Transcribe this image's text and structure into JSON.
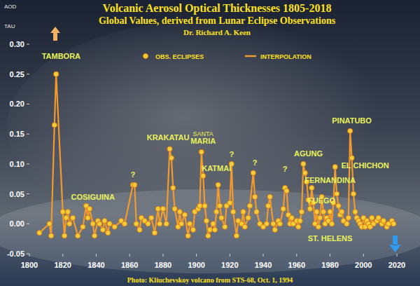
{
  "chart_data": {
    "type": "line",
    "title": "Volcanic Aerosol Optical Thicknesses 1805-2018",
    "subtitle": "Global Values, derived from Lunar Eclipse Observations",
    "author": "Dr. Richard A. Keen",
    "caption": "Photo: Kliuchevskoy volcano from STS-68, Oct. 1, 1994",
    "ylabel": [
      "AOD",
      "TAU"
    ],
    "x": [
      1806,
      1812,
      1813,
      1815,
      1816,
      1820,
      1821,
      1822,
      1823,
      1824,
      1826,
      1829,
      1832,
      1834,
      1835,
      1836,
      1838,
      1839,
      1841,
      1842,
      1844,
      1845,
      1847,
      1848,
      1851,
      1855,
      1857,
      1862,
      1863,
      1864,
      1866,
      1867,
      1869,
      1871,
      1873,
      1875,
      1877,
      1878,
      1880,
      1882,
      1884,
      1885,
      1886,
      1887,
      1889,
      1890,
      1891,
      1893,
      1895,
      1896,
      1898,
      1899,
      1901,
      1902,
      1903,
      1904,
      1905,
      1906,
      1907,
      1908,
      1910,
      1911,
      1912,
      1913,
      1914,
      1915,
      1917,
      1918,
      1920,
      1921,
      1922,
      1924,
      1925,
      1927,
      1928,
      1929,
      1931,
      1932,
      1934,
      1935,
      1936,
      1938,
      1940,
      1942,
      1943,
      1944,
      1946,
      1947,
      1949,
      1950,
      1952,
      1953,
      1954,
      1955,
      1956,
      1957,
      1958,
      1960,
      1961,
      1962,
      1963,
      1964,
      1965,
      1966,
      1967,
      1968,
      1969,
      1970,
      1971,
      1972,
      1973,
      1974,
      1975,
      1976,
      1977,
      1978,
      1979,
      1980,
      1981,
      1982,
      1983,
      1984,
      1985,
      1986,
      1987,
      1988,
      1990,
      1991,
      1992,
      1993,
      1994,
      1995,
      1996,
      1997,
      1998,
      1999,
      2000,
      2001,
      2002,
      2003,
      2004,
      2005,
      2006,
      2008,
      2009,
      2011,
      2012,
      2014,
      2015,
      2017,
      2018
    ],
    "series": [
      {
        "name": "INTERPOLATION",
        "type": "line",
        "color": "#f39a2e",
        "line_style": "solid",
        "values": [
          -0.015,
          0,
          -0.02,
          0.165,
          0.25,
          0.02,
          -0.02,
          0.01,
          0.02,
          0,
          0.01,
          -0.02,
          -0.005,
          0.03,
          0.01,
          0.025,
          0,
          -0.02,
          0.005,
          0,
          -0.01,
          0.005,
          -0.015,
          0,
          -0.005,
          0.005,
          0,
          0.065,
          0.065,
          0,
          -0.01,
          0.01,
          0.005,
          0,
          0.01,
          -0.015,
          0.025,
          0,
          0.025,
          0,
          0.125,
          0.11,
          0.06,
          0.025,
          -0.005,
          0.02,
          0,
          0.015,
          -0.02,
          0,
          -0.01,
          0.02,
          0.025,
          0.03,
          0.12,
          0.08,
          0.03,
          0.005,
          -0.02,
          -0.01,
          0,
          -0.01,
          0.02,
          0.065,
          0.03,
          0.01,
          -0.005,
          0.03,
          0.035,
          0.1,
          0.02,
          -0.02,
          0.005,
          0,
          0.02,
          -0.005,
          0.01,
          0.03,
          0.085,
          0.045,
          0.02,
          0,
          -0.005,
          0,
          0.03,
          0.045,
          0,
          -0.01,
          0.005,
          0,
          0.025,
          0.06,
          0.055,
          0.015,
          0,
          0.01,
          0,
          0.005,
          -0.005,
          0.005,
          0.02,
          0.1,
          0.085,
          0.07,
          0.04,
          0.025,
          0.06,
          0.035,
          0,
          0.02,
          -0.005,
          0.01,
          0.045,
          0.02,
          0,
          0.01,
          0.005,
          0.02,
          0,
          0.035,
          0.095,
          0.05,
          0.03,
          0.015,
          0.02,
          0.005,
          0,
          0.01,
          0.155,
          0.11,
          0.05,
          0.02,
          0.01,
          0.005,
          0,
          -0.005,
          0.01,
          -0.005,
          0.005,
          0,
          -0.005,
          0.01,
          0,
          0.005,
          0.01,
          0,
          0.005,
          -0.005,
          0,
          0.005,
          0
        ]
      },
      {
        "name": "OBS. ECLIPSES",
        "type": "scatter",
        "color": "#f2cf3a",
        "marker": "circle",
        "values": [
          -0.015,
          0,
          -0.02,
          0.165,
          0.25,
          0.02,
          -0.02,
          0.01,
          0.02,
          0,
          0.01,
          -0.02,
          -0.005,
          0.03,
          0.01,
          0.025,
          0,
          -0.02,
          0.005,
          0,
          -0.01,
          0.005,
          -0.015,
          0,
          -0.005,
          0.005,
          0,
          0.065,
          0.065,
          0,
          -0.01,
          0.01,
          0.005,
          0,
          0.01,
          -0.015,
          0.025,
          0,
          0.025,
          0,
          0.125,
          0.11,
          0.06,
          0.025,
          -0.005,
          0.02,
          0,
          0.015,
          -0.02,
          0,
          -0.01,
          0.02,
          0.025,
          0.03,
          0.12,
          0.08,
          0.03,
          0.005,
          -0.02,
          -0.01,
          0,
          -0.01,
          0.02,
          0.065,
          0.03,
          0.01,
          -0.005,
          0.03,
          0.035,
          0.1,
          0.02,
          -0.02,
          0.005,
          0,
          0.02,
          -0.005,
          0.01,
          0.03,
          0.085,
          0.045,
          0.02,
          0,
          -0.005,
          0,
          0.03,
          0.045,
          0,
          -0.01,
          0.005,
          0,
          0.025,
          0.06,
          0.055,
          0.015,
          0,
          0.01,
          0,
          0.005,
          -0.005,
          0.005,
          0.02,
          0.1,
          0.085,
          0.07,
          0.04,
          0.025,
          0.06,
          0.035,
          0,
          0.02,
          -0.005,
          0.01,
          0.045,
          0.02,
          0,
          0.01,
          0.005,
          0.02,
          0,
          0.035,
          0.095,
          0.05,
          0.03,
          0.015,
          0.02,
          0.005,
          0,
          0.01,
          0.155,
          0.11,
          0.05,
          0.02,
          0.01,
          0.005,
          0,
          -0.005,
          0.01,
          -0.005,
          0.005,
          0,
          -0.005,
          0.01,
          0,
          0.005,
          0.01,
          0,
          0.005,
          -0.005,
          0,
          0.005,
          0
        ]
      }
    ],
    "annotations": [
      {
        "text": "TAMBORA",
        "x": 1819,
        "y": 0.275
      },
      {
        "text": "COSIGUINA",
        "x": 1838,
        "y": 0.04
      },
      {
        "text": "KRAKATAU",
        "x": 1883,
        "y": 0.14
      },
      {
        "text": "SANTA",
        "x": 1904,
        "y": 0.147
      },
      {
        "text": "MARIA",
        "x": 1904,
        "y": 0.134
      },
      {
        "text": "KATMAI",
        "x": 1912,
        "y": 0.088
      },
      {
        "text": "?",
        "x": 1862,
        "y": 0.078
      },
      {
        "text": "?",
        "x": 1921,
        "y": 0.112
      },
      {
        "text": "?",
        "x": 1935,
        "y": 0.097
      },
      {
        "text": "?",
        "x": 1953,
        "y": 0.087
      },
      {
        "text": "AGUNG",
        "x": 1967,
        "y": 0.113
      },
      {
        "text": "FERNANDINA",
        "x": 1980,
        "y": 0.068
      },
      {
        "text": "FUEGO",
        "x": 1975,
        "y": 0.034
      },
      {
        "text": "ST. HELENS",
        "x": 1980,
        "y": -0.029
      },
      {
        "text": "EL CHICHON",
        "x": 2001,
        "y": 0.093
      },
      {
        "text": "PINATUBO",
        "x": 1993,
        "y": 0.168
      }
    ],
    "xlim": [
      1800,
      2020
    ],
    "xticks": [
      1800,
      1820,
      1840,
      1860,
      1880,
      1900,
      1920,
      1940,
      1960,
      1980,
      2000,
      2020
    ],
    "ylim": [
      -0.05,
      0.3
    ],
    "yticks": [
      -0.05,
      {
        "value": 0,
        "label": "0.00"
      },
      0.05,
      {
        "value": 0.1,
        "label": "0.10"
      },
      0.15,
      {
        "value": 0.2,
        "label": "0.20"
      },
      0.25,
      {
        "value": 0.3,
        "label": "0.30"
      }
    ],
    "grid": false,
    "legend": "top"
  }
}
